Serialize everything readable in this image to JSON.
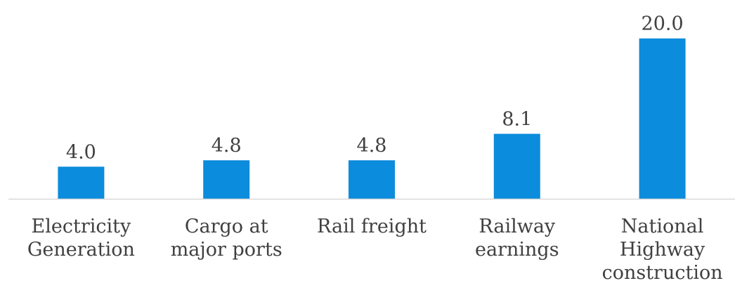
{
  "chart_data": {
    "type": "bar",
    "categories": [
      [
        "Electricity",
        "Generation"
      ],
      [
        "Cargo at",
        "major ports"
      ],
      [
        "Rail freight"
      ],
      [
        "Railway",
        "earnings"
      ],
      [
        "National",
        "Highway",
        "construction"
      ]
    ],
    "values": [
      4.0,
      4.8,
      4.8,
      8.1,
      20.0
    ],
    "value_labels": [
      "4.0",
      "4.8",
      "4.8",
      "8.1",
      "20.0"
    ],
    "title": "",
    "xlabel": "",
    "ylabel": "",
    "ylim": [
      0,
      22.6
    ],
    "grid": false,
    "legend": "none",
    "colors": {
      "bar": "#0C8CDC",
      "axis": "#D9D9D9",
      "text": "#404040"
    }
  }
}
